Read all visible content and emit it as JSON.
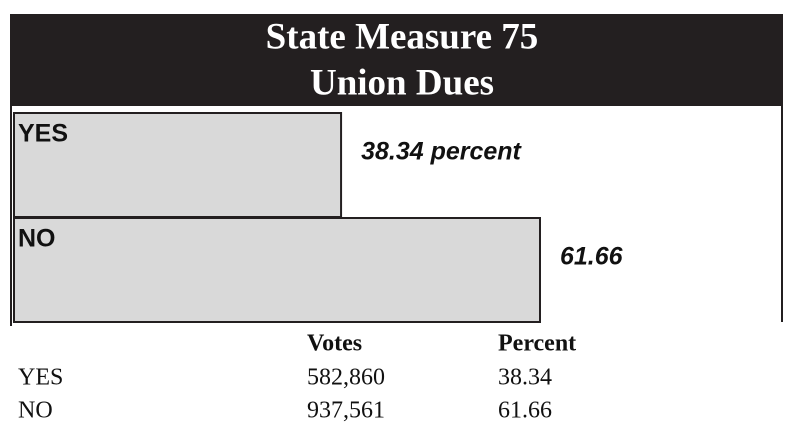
{
  "chart_data": {
    "type": "bar",
    "orientation": "horizontal",
    "title": "State Measure 75",
    "subtitle": "Union Dues",
    "categories": [
      "YES",
      "NO"
    ],
    "values": [
      38.34,
      61.66
    ],
    "value_labels": [
      "38.34 percent",
      "61.66"
    ],
    "color": "#d9d9d9",
    "table": {
      "columns": [
        "Votes",
        "Percent"
      ],
      "rows": [
        [
          "YES",
          "582,860",
          "38.34"
        ],
        [
          "NO",
          "937,561",
          "61.66"
        ]
      ]
    }
  }
}
